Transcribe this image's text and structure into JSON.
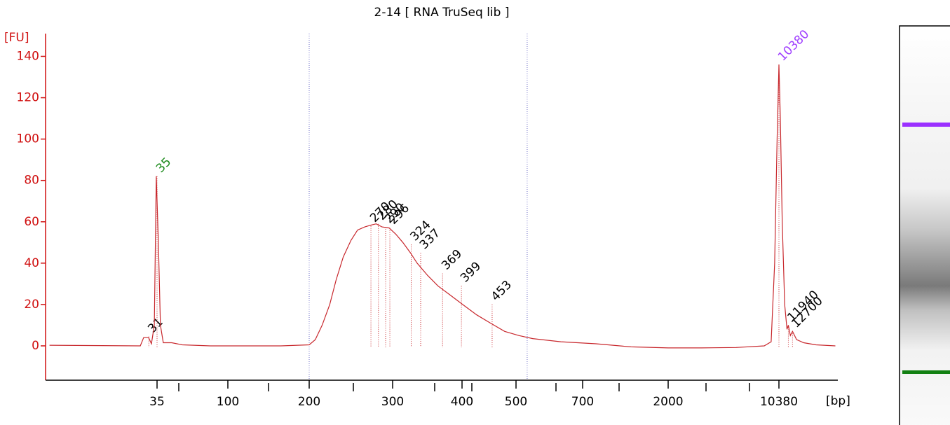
{
  "chart_data": {
    "type": "line",
    "title": "2-14  [ RNA TruSeq lib ]",
    "y_label": "[FU]",
    "x_label": "[bp]",
    "log_x": true,
    "xlim": [
      6.7,
      24900
    ],
    "xticks": [
      35,
      100,
      200,
      300,
      400,
      500,
      700,
      2000,
      10380
    ],
    "ylim": [
      -16.6,
      151
    ],
    "yticks": [
      0,
      20,
      40,
      60,
      80,
      100,
      120,
      140
    ],
    "color": "#c8282d",
    "axis_color": "#d01010",
    "region": [
      200,
      529
    ],
    "region_color": "#7070c8",
    "x": [
      7.1,
      27.3,
      28.7,
      30.9,
      32.2,
      33.6,
      34.6,
      35.7,
      36.8,
      38.4,
      43.5,
      50.9,
      77.1,
      157,
      200,
      206,
      213,
      221,
      228,
      236,
      245,
      253,
      262,
      271,
      277,
      285,
      295,
      304,
      313,
      323,
      332,
      347,
      362,
      379,
      401,
      425,
      450,
      477,
      507,
      544,
      627,
      825,
      1268,
      2000,
      3264,
      5496,
      8337,
      9250,
      9745,
      10100,
      10380,
      10600,
      10900,
      11300,
      11700,
      11940,
      12300,
      12700,
      13500,
      15000,
      18000,
      24000
    ],
    "values": [
      0.3,
      0,
      4,
      4,
      1,
      10,
      82,
      50,
      10,
      1.5,
      1.5,
      0.5,
      0,
      0,
      0.5,
      3,
      10,
      20,
      32,
      43,
      51,
      56,
      57.5,
      58.5,
      59,
      57.5,
      57,
      54,
      50,
      45,
      40,
      34,
      29,
      25,
      20,
      15,
      11,
      7,
      5,
      3.5,
      2,
      1,
      -0.5,
      -1,
      -1,
      -0.8,
      0,
      2,
      40,
      100,
      136,
      110,
      60,
      20,
      8,
      10,
      5,
      7,
      3,
      1.5,
      0.5,
      0
    ],
    "peaks": [
      {
        "bp": 31,
        "fu": 4.5,
        "color": "#000000"
      },
      {
        "bp": 35,
        "fu": 82,
        "color": "#1a8a1a"
      },
      {
        "bp": 270,
        "fu": 58,
        "color": "#000000"
      },
      {
        "bp": 280,
        "fu": 59,
        "color": "#000000"
      },
      {
        "bp": 290,
        "fu": 57.5,
        "color": "#000000"
      },
      {
        "bp": 296,
        "fu": 57,
        "color": "#000000"
      },
      {
        "bp": 324,
        "fu": 49,
        "color": "#000000"
      },
      {
        "bp": 337,
        "fu": 45,
        "color": "#000000"
      },
      {
        "bp": 369,
        "fu": 35,
        "color": "#000000"
      },
      {
        "bp": 399,
        "fu": 29,
        "color": "#000000"
      },
      {
        "bp": 453,
        "fu": 20,
        "color": "#000000"
      },
      {
        "bp": 10380,
        "fu": 136,
        "color": "#a040ff"
      },
      {
        "bp": 11940,
        "fu": 10,
        "color": "#000000"
      },
      {
        "bp": 12700,
        "fu": 7,
        "color": "#000000"
      }
    ]
  }
}
